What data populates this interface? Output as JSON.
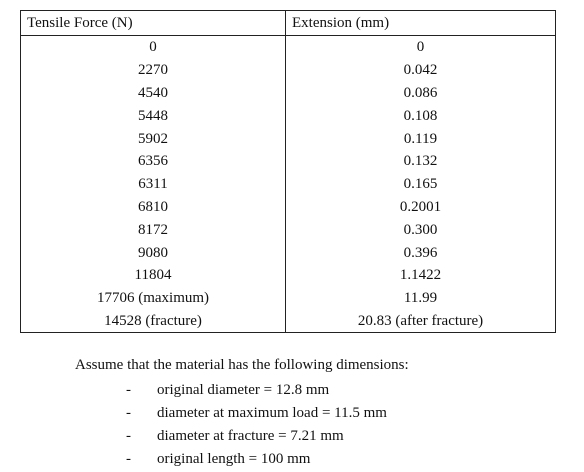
{
  "table": {
    "header": [
      "Tensile Force (N)",
      "Extension (mm)"
    ],
    "rows": [
      [
        "0",
        "0"
      ],
      [
        "2270",
        "0.042"
      ],
      [
        "4540",
        "0.086"
      ],
      [
        "5448",
        "0.108"
      ],
      [
        "5902",
        "0.119"
      ],
      [
        "6356",
        "0.132"
      ],
      [
        "6311",
        "0.165"
      ],
      [
        "6810",
        "0.2001"
      ],
      [
        "8172",
        "0.300"
      ],
      [
        "9080",
        "0.396"
      ],
      [
        "11804",
        "1.1422"
      ],
      [
        "17706 (maximum)",
        "11.99"
      ],
      [
        "14528 (fracture)",
        "20.83 (after fracture)"
      ]
    ]
  },
  "notes": {
    "intro": "Assume that the material has the following dimensions:",
    "items": [
      "original diameter = 12.8 mm",
      "diameter at maximum load = 11.5 mm",
      "diameter at fracture = 7.21 mm",
      "original length = 100 mm"
    ]
  }
}
